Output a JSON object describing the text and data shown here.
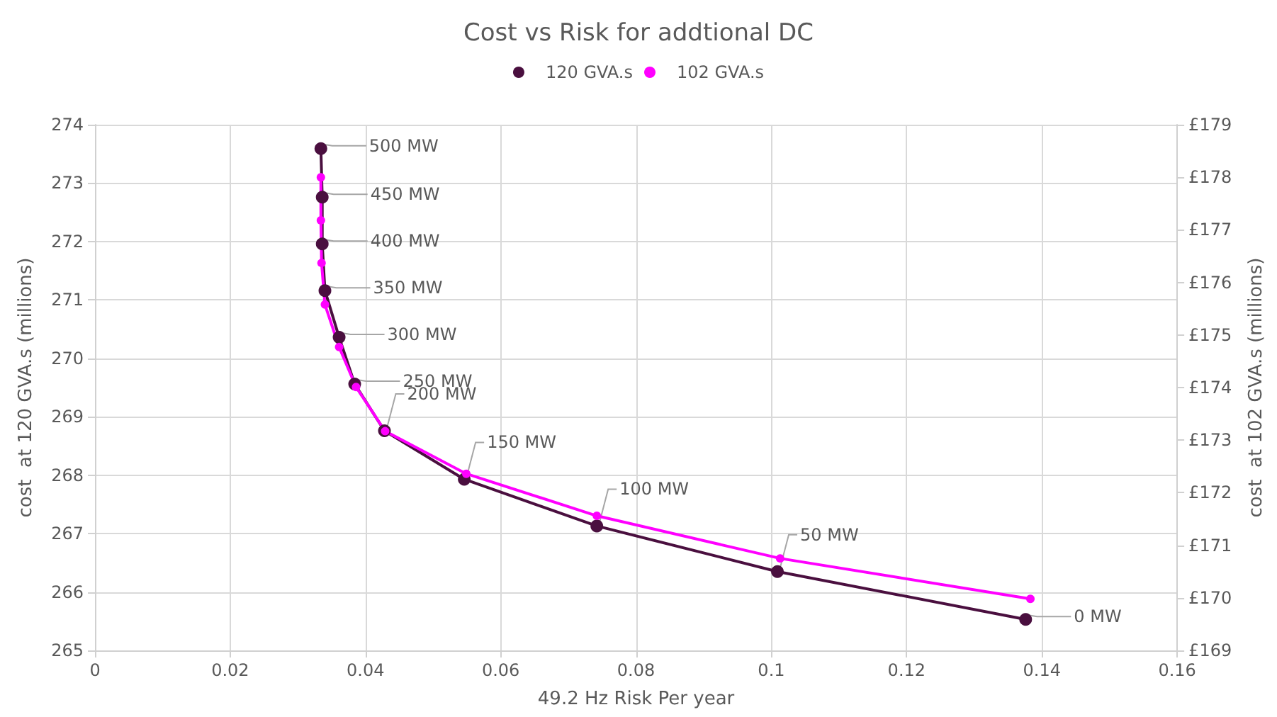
{
  "chart_data": {
    "type": "line",
    "title": "Cost vs Risk for addtional DC",
    "xlabel": "49.2 Hz Risk Per year",
    "ylabel": "cost  at 120 GVA.s (millions)",
    "y2label": "cost  at 102 GVA.s (millions)",
    "series": [
      {
        "name": "120 GVA.s",
        "color": "#4a0f3f",
        "x": [
          0.0334,
          0.0336,
          0.0336,
          0.034,
          0.0361,
          0.0384,
          0.0428,
          0.0546,
          0.0742,
          0.1009,
          0.1376
        ],
        "values": [
          273.59,
          272.76,
          271.96,
          271.16,
          270.36,
          269.56,
          268.76,
          267.93,
          267.13,
          266.35,
          265.53
        ]
      },
      {
        "name": "102 GVA.s",
        "color": "#ff00ff",
        "axis": "y2",
        "x": [
          0.0334,
          0.0334,
          0.0335,
          0.034,
          0.0361,
          0.0386,
          0.0429,
          0.0549,
          0.0742,
          0.1013,
          0.1383
        ],
        "values": [
          178.0,
          177.18,
          176.37,
          175.58,
          174.77,
          174.01,
          173.17,
          172.36,
          171.56,
          170.75,
          169.98
        ]
      }
    ],
    "annotations": [
      {
        "text": "500 MW",
        "x": 0.0334,
        "y": 273.59
      },
      {
        "text": "450 MW",
        "x": 0.0336,
        "y": 272.76
      },
      {
        "text": "400 MW",
        "x": 0.0336,
        "y": 271.96
      },
      {
        "text": "350 MW",
        "x": 0.034,
        "y": 271.16
      },
      {
        "text": "300 MW",
        "x": 0.0361,
        "y": 270.36
      },
      {
        "text": "250 MW",
        "x": 0.0384,
        "y": 269.56
      },
      {
        "text": "200 MW",
        "x": 0.0428,
        "y": 268.76
      },
      {
        "text": "150 MW",
        "x": 0.0546,
        "y": 267.93
      },
      {
        "text": "100 MW",
        "x": 0.0742,
        "y": 267.13
      },
      {
        "text": "50 MW",
        "x": 0.1009,
        "y": 266.35
      },
      {
        "text": "0 MW",
        "x": 0.1376,
        "y": 265.53
      }
    ],
    "xlim": [
      0,
      0.16
    ],
    "xticks": [
      0,
      0.02,
      0.04,
      0.06,
      0.08,
      0.1,
      0.12,
      0.14,
      0.16
    ],
    "ylim": [
      265,
      274
    ],
    "yticks": [
      265,
      266,
      267,
      268,
      269,
      270,
      271,
      272,
      273,
      274
    ],
    "y2lim": [
      169,
      179
    ],
    "y2ticks": [
      {
        "value": 169,
        "label": "£169"
      },
      {
        "value": 170,
        "label": "£170"
      },
      {
        "value": 171,
        "label": "£171"
      },
      {
        "value": 172,
        "label": "£172"
      },
      {
        "value": 173,
        "label": "£173"
      },
      {
        "value": 174,
        "label": "£174"
      },
      {
        "value": 175,
        "label": "£175"
      },
      {
        "value": 176,
        "label": "£176"
      },
      {
        "value": 177,
        "label": "£177"
      },
      {
        "value": 178,
        "label": "£178"
      },
      {
        "value": 179,
        "label": "£179"
      }
    ],
    "grid": true,
    "legend": "top",
    "marker": "circle",
    "line_style": "solid"
  }
}
